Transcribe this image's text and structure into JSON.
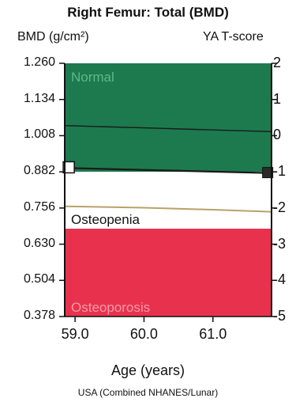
{
  "chart_data": {
    "type": "line",
    "title": "Right Femur: Total (BMD)",
    "ylabel": "BMD (g/cm²)",
    "y2label": "YA T-score",
    "xlabel": "Age (years)",
    "footer": "USA (Combined NHANES/Lunar)",
    "xlim": [
      58.85,
      61.85
    ],
    "ylim": [
      0.378,
      1.26
    ],
    "x_ticks": [
      "59.0",
      "60.0",
      "61.0"
    ],
    "x_tick_values": [
      59.0,
      60.0,
      61.0
    ],
    "y_ticks": [
      "1.260",
      "1.134",
      "1.008",
      "0.882",
      "0.756",
      "0.630",
      "0.504",
      "0.378"
    ],
    "y_tick_values": [
      1.26,
      1.134,
      1.008,
      0.882,
      0.756,
      0.63,
      0.504,
      0.378
    ],
    "y2_ticks": [
      "2",
      "1",
      "0",
      "-1",
      "-2",
      "-3",
      "-4",
      "-5"
    ],
    "zones": [
      {
        "name": "Normal",
        "from": 0.882,
        "to": 1.26,
        "color": "#1c7a4e"
      },
      {
        "name": "Osteopenia",
        "from": 0.684,
        "to": 0.882,
        "color": "#ffffff"
      },
      {
        "name": "Osteoporosis",
        "from": 0.378,
        "to": 0.684,
        "color": "#e8324d"
      }
    ],
    "series": [
      {
        "points": [
          [
            58.92,
            0.895
          ],
          [
            61.8,
            0.878
          ]
        ]
      },
      {
        "points": [
          [
            58.85,
            1.043
          ],
          [
            60.0,
            1.035
          ],
          [
            61.0,
            1.028
          ],
          [
            61.85,
            1.022
          ]
        ]
      },
      {
        "points": [
          [
            58.85,
            0.762
          ],
          [
            60.0,
            0.757
          ],
          [
            61.0,
            0.75
          ],
          [
            61.85,
            0.743
          ]
        ]
      }
    ],
    "colors": {
      "reference_line": "#1a1a1a",
      "trend_line": "#b8a26a"
    }
  }
}
